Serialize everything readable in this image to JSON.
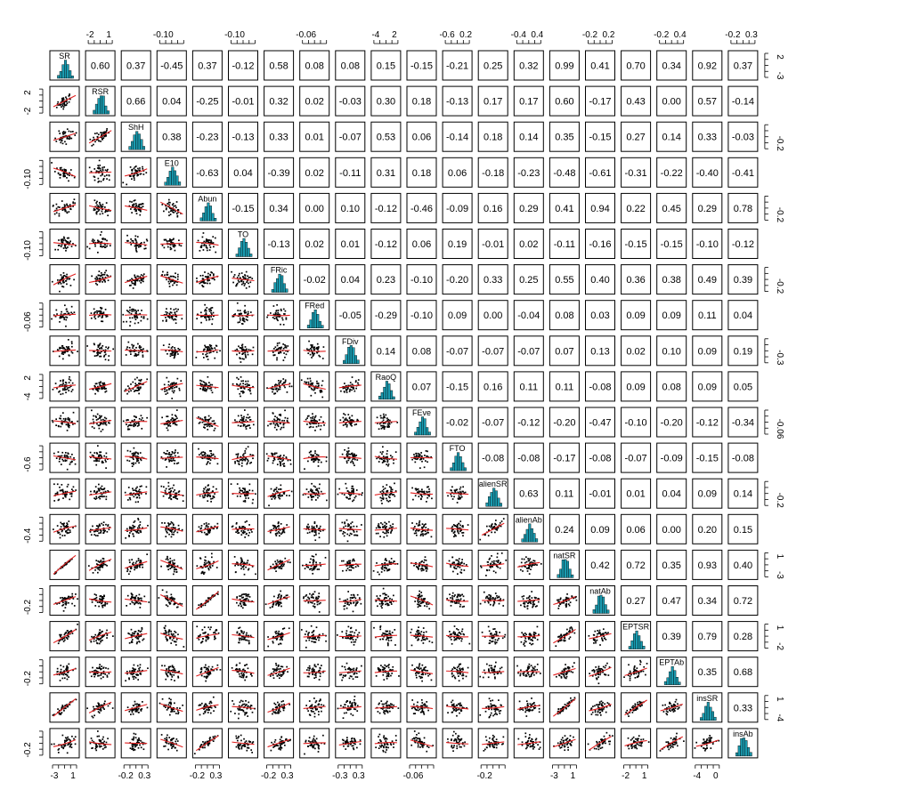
{
  "chart_data": {
    "type": "scatter-matrix",
    "variables": [
      "SR",
      "RSR",
      "ShH",
      "E10",
      "Abun",
      "TO",
      "FRic",
      "FRed",
      "FDiv",
      "RaoQ",
      "FEve",
      "FTO",
      "alienSR",
      "alienAb",
      "natSR",
      "natAb",
      "EPTSR",
      "EPTAb",
      "insSR",
      "insAb"
    ],
    "correlations": [
      [
        "",
        "0.60",
        "0.37",
        "-0.45",
        "0.37",
        "-0.12",
        "0.58",
        "0.08",
        "0.08",
        "0.15",
        "-0.15",
        "-0.21",
        "0.25",
        "0.32",
        "0.99",
        "0.41",
        "0.70",
        "0.34",
        "0.92",
        "0.37"
      ],
      [
        "",
        "",
        "0.66",
        "0.04",
        "-0.25",
        "-0.01",
        "0.32",
        "0.02",
        "-0.03",
        "0.30",
        "0.18",
        "-0.13",
        "0.17",
        "0.17",
        "0.60",
        "-0.17",
        "0.43",
        "0.00",
        "0.57",
        "-0.14"
      ],
      [
        "",
        "",
        "",
        "0.38",
        "-0.23",
        "-0.13",
        "0.33",
        "0.01",
        "-0.07",
        "0.53",
        "0.06",
        "-0.14",
        "0.18",
        "0.14",
        "0.35",
        "-0.15",
        "0.27",
        "0.14",
        "0.33",
        "-0.03"
      ],
      [
        "",
        "",
        "",
        "",
        "-0.63",
        "0.04",
        "-0.39",
        "0.02",
        "-0.11",
        "0.31",
        "0.18",
        "0.06",
        "-0.18",
        "-0.23",
        "-0.48",
        "-0.61",
        "-0.31",
        "-0.22",
        "-0.40",
        "-0.41"
      ],
      [
        "",
        "",
        "",
        "",
        "",
        "-0.15",
        "0.34",
        "0.00",
        "0.10",
        "-0.12",
        "-0.46",
        "-0.09",
        "0.16",
        "0.29",
        "0.41",
        "0.94",
        "0.22",
        "0.45",
        "0.29",
        "0.78"
      ],
      [
        "",
        "",
        "",
        "",
        "",
        "",
        "-0.13",
        "0.02",
        "0.01",
        "-0.12",
        "0.06",
        "0.19",
        "-0.01",
        "0.02",
        "-0.11",
        "-0.16",
        "-0.15",
        "-0.15",
        "-0.10",
        "-0.12"
      ],
      [
        "",
        "",
        "",
        "",
        "",
        "",
        "",
        "-0.02",
        "0.04",
        "0.23",
        "-0.10",
        "-0.20",
        "0.33",
        "0.25",
        "0.55",
        "0.40",
        "0.36",
        "0.38",
        "0.49",
        "0.39"
      ],
      [
        "",
        "",
        "",
        "",
        "",
        "",
        "",
        "",
        "-0.05",
        "-0.29",
        "-0.10",
        "0.09",
        "0.00",
        "-0.04",
        "0.08",
        "0.03",
        "0.09",
        "0.09",
        "0.11",
        "0.04"
      ],
      [
        "",
        "",
        "",
        "",
        "",
        "",
        "",
        "",
        "",
        "0.14",
        "0.08",
        "-0.07",
        "-0.07",
        "-0.07",
        "0.07",
        "0.13",
        "0.02",
        "0.10",
        "0.09",
        "0.19"
      ],
      [
        "",
        "",
        "",
        "",
        "",
        "",
        "",
        "",
        "",
        "",
        "0.07",
        "-0.15",
        "0.16",
        "0.11",
        "0.11",
        "-0.08",
        "0.09",
        "0.08",
        "0.09",
        "0.05"
      ],
      [
        "",
        "",
        "",
        "",
        "",
        "",
        "",
        "",
        "",
        "",
        "",
        "-0.02",
        "-0.07",
        "-0.12",
        "-0.20",
        "-0.47",
        "-0.10",
        "-0.20",
        "-0.12",
        "-0.34"
      ],
      [
        "",
        "",
        "",
        "",
        "",
        "",
        "",
        "",
        "",
        "",
        "",
        "",
        "-0.08",
        "-0.08",
        "-0.17",
        "-0.08",
        "-0.07",
        "-0.09",
        "-0.15",
        "-0.08"
      ],
      [
        "",
        "",
        "",
        "",
        "",
        "",
        "",
        "",
        "",
        "",
        "",
        "",
        "",
        "0.63",
        "0.11",
        "-0.01",
        "0.01",
        "0.04",
        "0.09",
        "0.14"
      ],
      [
        "",
        "",
        "",
        "",
        "",
        "",
        "",
        "",
        "",
        "",
        "",
        "",
        "",
        "",
        "0.24",
        "0.09",
        "0.06",
        "0.00",
        "0.20",
        "0.15"
      ],
      [
        "",
        "",
        "",
        "",
        "",
        "",
        "",
        "",
        "",
        "",
        "",
        "",
        "",
        "",
        "",
        "0.42",
        "0.72",
        "0.35",
        "0.93",
        "0.40"
      ],
      [
        "",
        "",
        "",
        "",
        "",
        "",
        "",
        "",
        "",
        "",
        "",
        "",
        "",
        "",
        "",
        "",
        "0.27",
        "0.47",
        "0.34",
        "0.72"
      ],
      [
        "",
        "",
        "",
        "",
        "",
        "",
        "",
        "",
        "",
        "",
        "",
        "",
        "",
        "",
        "",
        "",
        "",
        "0.39",
        "0.79",
        "0.28"
      ],
      [
        "",
        "",
        "",
        "",
        "",
        "",
        "",
        "",
        "",
        "",
        "",
        "",
        "",
        "",
        "",
        "",
        "",
        "",
        "0.35",
        "0.68"
      ],
      [
        "",
        "",
        "",
        "",
        "",
        "",
        "",
        "",
        "",
        "",
        "",
        "",
        "",
        "",
        "",
        "",
        "",
        "",
        "",
        "0.33"
      ],
      [
        "",
        "",
        "",
        "",
        "",
        "",
        "",
        "",
        "",
        "",
        "",
        "",
        "",
        "",
        "",
        "",
        "",
        "",
        "",
        ""
      ]
    ],
    "top_axis_labels": [
      {
        "col": 1,
        "labels": [
          "-2",
          "1"
        ]
      },
      {
        "col": 3,
        "labels": [
          "-0.10"
        ]
      },
      {
        "col": 5,
        "labels": [
          "-0.10"
        ]
      },
      {
        "col": 7,
        "labels": [
          "-0.06"
        ]
      },
      {
        "col": 9,
        "labels": [
          "-4",
          "2"
        ]
      },
      {
        "col": 11,
        "labels": [
          "-0.6",
          "0.2"
        ]
      },
      {
        "col": 13,
        "labels": [
          "-0.4",
          "0.4"
        ]
      },
      {
        "col": 15,
        "labels": [
          "-0.2",
          "0.2"
        ]
      },
      {
        "col": 17,
        "labels": [
          "-0.2",
          "0.4"
        ]
      },
      {
        "col": 19,
        "labels": [
          "-0.2",
          "0.3"
        ]
      }
    ],
    "bottom_axis_labels": [
      {
        "col": 0,
        "labels": [
          "-3",
          "1"
        ]
      },
      {
        "col": 2,
        "labels": [
          "-0.2",
          "0.3"
        ]
      },
      {
        "col": 4,
        "labels": [
          "-0.2",
          "0.3"
        ]
      },
      {
        "col": 6,
        "labels": [
          "-0.2",
          "0.3"
        ]
      },
      {
        "col": 8,
        "labels": [
          "-0.3",
          "0.3"
        ]
      },
      {
        "col": 10,
        "labels": [
          "-0.06"
        ]
      },
      {
        "col": 12,
        "labels": [
          "-0.2"
        ]
      },
      {
        "col": 14,
        "labels": [
          "-3",
          "1"
        ]
      },
      {
        "col": 16,
        "labels": [
          "-2",
          "1"
        ]
      },
      {
        "col": 18,
        "labels": [
          "-4",
          "0"
        ]
      }
    ],
    "left_axis_labels": [
      {
        "row": 1,
        "labels": [
          "-2",
          "2"
        ]
      },
      {
        "row": 3,
        "labels": [
          "-0.10"
        ]
      },
      {
        "row": 5,
        "labels": [
          "-0.10"
        ]
      },
      {
        "row": 7,
        "labels": [
          "-0.06"
        ]
      },
      {
        "row": 9,
        "labels": [
          "-4",
          "2"
        ]
      },
      {
        "row": 11,
        "labels": [
          "-0.6"
        ]
      },
      {
        "row": 13,
        "labels": [
          "-0.4"
        ]
      },
      {
        "row": 15,
        "labels": [
          "-0.2"
        ]
      },
      {
        "row": 17,
        "labels": [
          "-0.2"
        ]
      },
      {
        "row": 19,
        "labels": [
          "-0.2"
        ]
      }
    ],
    "right_axis_labels": [
      {
        "row": 0,
        "labels": [
          "-3",
          "2"
        ]
      },
      {
        "row": 2,
        "labels": [
          "-0.2"
        ]
      },
      {
        "row": 4,
        "labels": [
          "-0.2"
        ]
      },
      {
        "row": 6,
        "labels": [
          "-0.2"
        ]
      },
      {
        "row": 8,
        "labels": [
          "-0.3"
        ]
      },
      {
        "row": 10,
        "labels": [
          "-0.06"
        ]
      },
      {
        "row": 12,
        "labels": [
          "-0.2"
        ]
      },
      {
        "row": 14,
        "labels": [
          "-3",
          "1"
        ]
      },
      {
        "row": 16,
        "labels": [
          "-2",
          "1"
        ]
      },
      {
        "row": 18,
        "labels": [
          "-4",
          "1"
        ]
      }
    ],
    "colors": {
      "histogram_fill": "#1a9bb0",
      "smoother_line": "#e02020",
      "points": "#000000",
      "panel_border": "#000000",
      "background": "#ffffff"
    },
    "grid": false
  }
}
